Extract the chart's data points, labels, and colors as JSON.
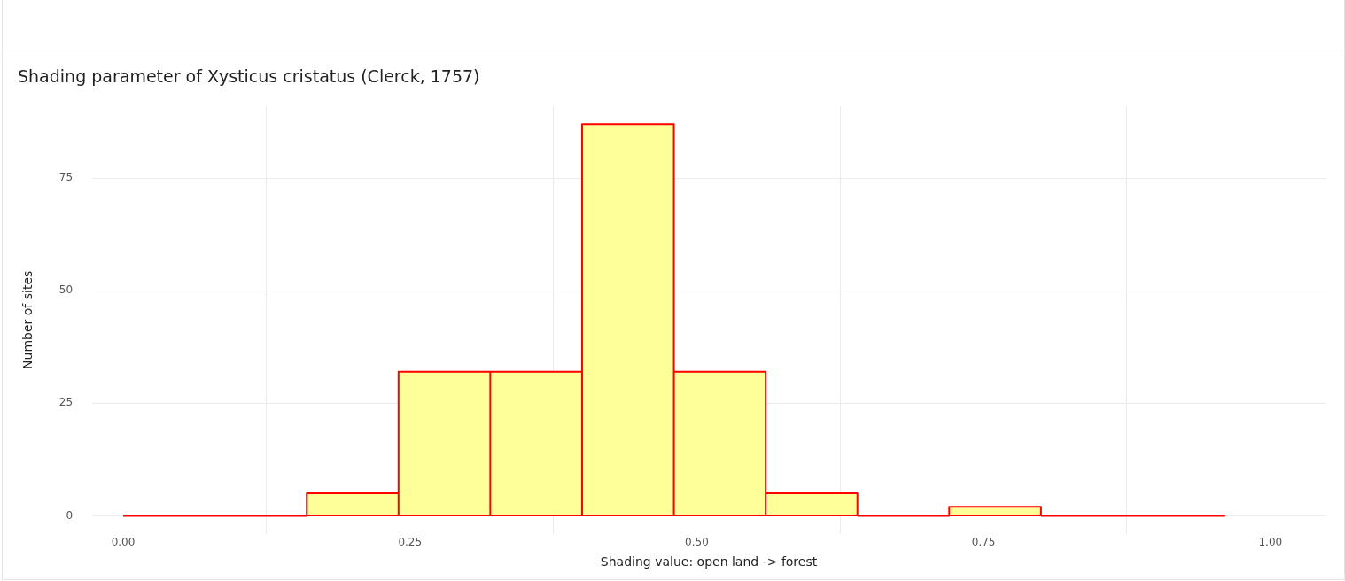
{
  "chart_data": {
    "type": "histogram",
    "title": "Shading parameter of Xysticus cristatus (Clerck, 1757)",
    "xlabel": "Shading value: open land -> forest",
    "ylabel": "Number of sites",
    "bins": [
      0,
      0.08,
      0.16,
      0.24,
      0.32,
      0.4,
      0.48,
      0.56,
      0.64,
      0.72,
      0.8,
      0.88,
      0.96
    ],
    "values": [
      0,
      0,
      5,
      32,
      32,
      87,
      32,
      5,
      0,
      2,
      0,
      0
    ],
    "color": "#ffff99",
    "xlim": [
      -0.027,
      1.048
    ],
    "xticks": [
      {
        "value": 0,
        "label": "0.00"
      },
      {
        "value": 0.25,
        "label": "0.25"
      },
      {
        "value": 0.5,
        "label": "0.50"
      },
      {
        "value": 0.75,
        "label": "0.75"
      },
      {
        "value": 1,
        "label": "1.00"
      }
    ],
    "ylim": [
      -4,
      91
    ],
    "yticks": [
      0,
      25,
      50,
      75
    ],
    "grid": true
  }
}
